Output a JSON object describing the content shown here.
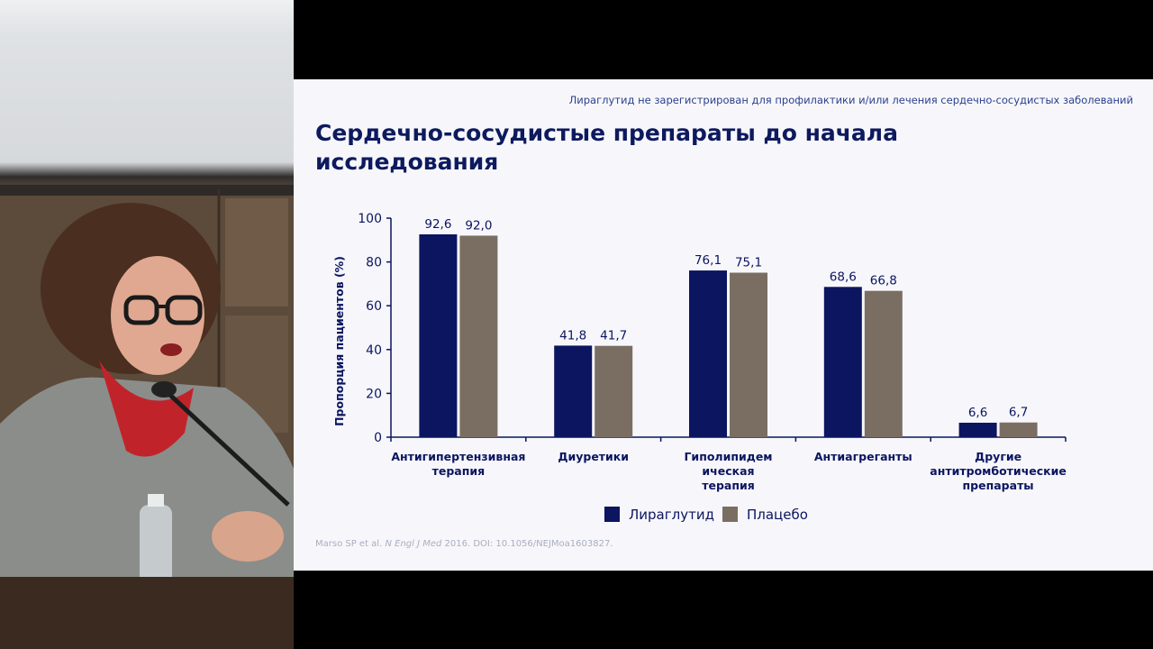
{
  "slide": {
    "disclaimer": "Лираглутид не зарегистрирован для профилактики и/или лечения сердечно-сосудистых заболеваний",
    "title_line1": "Сердечно-сосудистые  препараты до начала",
    "title_line2": "исследования",
    "reference_authors": "Marso SP et al.",
    "reference_journal": "N Engl J Med",
    "reference_rest": "2016. DOI: 10.1056/NEJMoa1603827."
  },
  "chart_data": {
    "type": "bar",
    "ylabel": "Пропорция пациентов (%)",
    "ylim": [
      0,
      100
    ],
    "yticks": [
      0,
      20,
      40,
      60,
      80,
      100
    ],
    "categories": [
      [
        "Антигипертензивная",
        "терапия"
      ],
      [
        "Диуретики"
      ],
      [
        "Гиполипидем",
        "ическая",
        "терапия"
      ],
      [
        "Антиагреганты"
      ],
      [
        "Другие",
        "антитромботические",
        "препараты"
      ]
    ],
    "series": [
      {
        "name": "Лираглутид",
        "color": "#0b1560",
        "values": [
          92.6,
          41.8,
          76.1,
          68.6,
          6.6
        ],
        "labels": [
          "92,6",
          "41,8",
          "76,1",
          "68,6",
          "6,6"
        ]
      },
      {
        "name": "Плацебо",
        "color": "#7a6e63",
        "values": [
          92.0,
          41.7,
          75.1,
          66.8,
          6.7
        ],
        "labels": [
          "92,0",
          "41,7",
          "75,1",
          "66,8",
          "6,7"
        ]
      }
    ],
    "grid": false,
    "legend": "bottom-center"
  }
}
